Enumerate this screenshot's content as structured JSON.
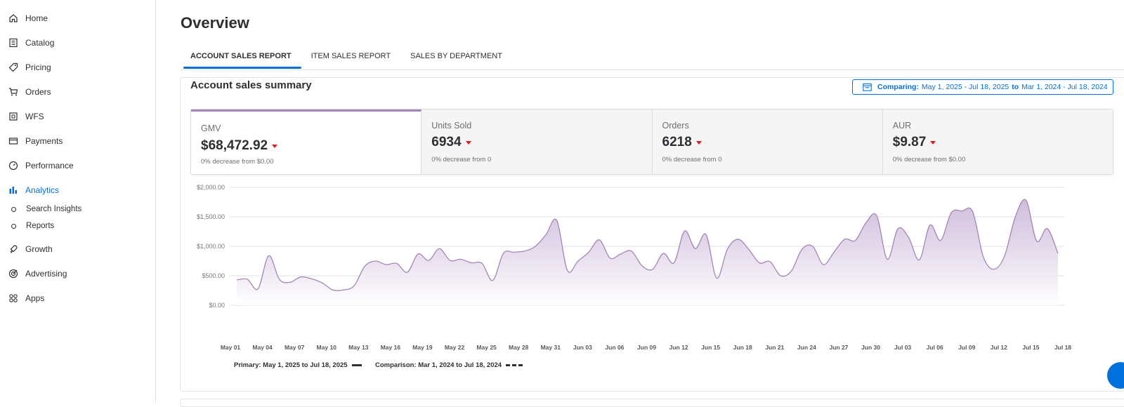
{
  "sidebar": {
    "items": [
      {
        "label": "Home",
        "icon": "home-icon"
      },
      {
        "label": "Catalog",
        "icon": "catalog-icon"
      },
      {
        "label": "Pricing",
        "icon": "price-tag-icon"
      },
      {
        "label": "Orders",
        "icon": "cart-icon"
      },
      {
        "label": "WFS",
        "icon": "warehouse-icon"
      },
      {
        "label": "Payments",
        "icon": "card-icon"
      },
      {
        "label": "Performance",
        "icon": "gauge-icon"
      },
      {
        "label": "Analytics",
        "icon": "bar-chart-icon"
      },
      {
        "label": "Growth",
        "icon": "rocket-icon"
      },
      {
        "label": "Advertising",
        "icon": "target-icon"
      },
      {
        "label": "Apps",
        "icon": "apps-grid-icon"
      }
    ],
    "analytics_sub": [
      {
        "label": "Search Insights"
      },
      {
        "label": "Reports"
      }
    ],
    "active_item": "Analytics",
    "active_color": "#0071dc"
  },
  "page": {
    "title": "Overview",
    "tabs": [
      {
        "label": "ACCOUNT SALES REPORT"
      },
      {
        "label": "ITEM SALES REPORT"
      },
      {
        "label": "SALES BY DEPARTMENT"
      }
    ],
    "active_tab": "ACCOUNT SALES REPORT"
  },
  "summary": {
    "title": "Account sales summary",
    "compare": {
      "label": "Comparing:",
      "primary": "May 1, 2025 - Jul 18, 2025",
      "to": "to",
      "comparison": "Mar 1, 2024 - Jul 18, 2024"
    },
    "kpis": [
      {
        "label": "GMV",
        "value": "$68,472.92",
        "delta": "0% decrease from $0.00"
      },
      {
        "label": "Units Sold",
        "value": "6934",
        "delta": "0% decrease from 0"
      },
      {
        "label": "Orders",
        "value": "6218",
        "delta": "0% decrease from 0"
      },
      {
        "label": "AUR",
        "value": "$9.87",
        "delta": "0% decrease from $0.00"
      }
    ],
    "down_color": "#de1c24",
    "accent_color": "#a585b7"
  },
  "chart_data": {
    "type": "area",
    "y_ticks": [
      "$2,000.00",
      "$1,500.00",
      "$1,000.00",
      "$500.00",
      "$0.00"
    ],
    "ylim": [
      0,
      2000
    ],
    "grid": true,
    "x_ticks": [
      "May 01",
      "May 04",
      "May 07",
      "May 10",
      "May 13",
      "May 16",
      "May 19",
      "May 22",
      "May 25",
      "May 28",
      "May 31",
      "Jun 03",
      "Jun 06",
      "Jun 09",
      "Jun 12",
      "Jun 15",
      "Jun 18",
      "Jun 21",
      "Jun 24",
      "Jun 27",
      "Jun 30",
      "Jul 03",
      "Jul 06",
      "Jul 09",
      "Jul 12",
      "Jul 15",
      "Jul 18"
    ],
    "series": [
      {
        "values": [
          430,
          440,
          280,
          840,
          440,
          390,
          480,
          450,
          380,
          260,
          260,
          330,
          660,
          750,
          690,
          710,
          560,
          870,
          760,
          960,
          760,
          780,
          720,
          710,
          420,
          880,
          900,
          920,
          1000,
          1200,
          1440,
          590,
          750,
          900,
          1110,
          800,
          870,
          920,
          670,
          610,
          880,
          720,
          1260,
          960,
          1200,
          460,
          950,
          1120,
          950,
          720,
          740,
          500,
          580,
          950,
          1000,
          690,
          900,
          1120,
          1100,
          1400,
          1520,
          780,
          1300,
          1150,
          770,
          1360,
          1100,
          1570,
          1600,
          1590,
          820,
          610,
          840,
          1500,
          1780,
          1090,
          1300,
          880
        ],
        "color": "#a585b7"
      }
    ],
    "legend": [
      {
        "label": "Primary: May 1, 2025 to Jul 18, 2025",
        "style": "solid"
      },
      {
        "label": "Comparison: Mar 1, 2024 to Jul 18, 2024",
        "style": "dashed"
      }
    ]
  }
}
